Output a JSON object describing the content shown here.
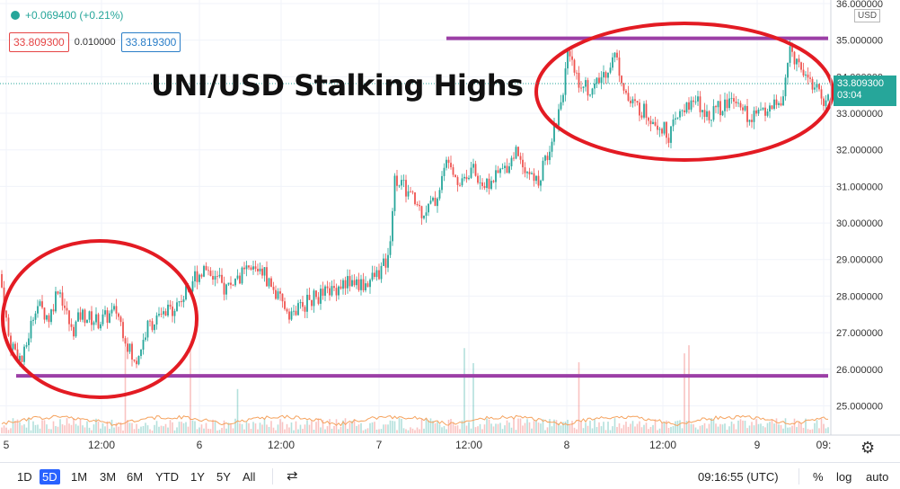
{
  "header": {
    "change": "+0.069400 (+0.21%)",
    "sell_price": "33.809300",
    "spread": "0.010000",
    "buy_price": "33.819300"
  },
  "headline": "UNI/USD Stalking Highs",
  "axis": {
    "currency": "USD",
    "last_price": "33.809300",
    "countdown": "03:04",
    "clock": "09:16:55 (UTC)"
  },
  "ranges": [
    "1D",
    "5D",
    "1M",
    "3M",
    "6M",
    "YTD",
    "1Y",
    "5Y",
    "All"
  ],
  "active_range": "5D",
  "toggles": {
    "percent": "%",
    "log": "log",
    "auto": "auto"
  },
  "colors": {
    "up": "#26a69a",
    "down": "#ef5350",
    "level": "#9c3fa6",
    "circle": "#e31b23",
    "active": "#2962ff"
  },
  "chart_data": {
    "type": "candlestick",
    "ylim": [
      24.2,
      36.0
    ],
    "y_ticks": [
      "36.000000",
      "35.000000",
      "34.000000",
      "33.000000",
      "32.000000",
      "31.000000",
      "30.000000",
      "29.000000",
      "28.000000",
      "27.000000",
      "26.000000",
      "25.000000"
    ],
    "x_ticks": [
      "5",
      "12:00",
      "6",
      "12:00",
      "7",
      "12:00",
      "8",
      "12:00",
      "9",
      "09:"
    ],
    "anchors": [
      [
        0,
        28.6
      ],
      [
        10,
        26.8
      ],
      [
        25,
        26.2
      ],
      [
        40,
        27.8
      ],
      [
        55,
        27.4
      ],
      [
        65,
        28.3
      ],
      [
        80,
        27.0
      ],
      [
        90,
        27.5
      ],
      [
        110,
        27.3
      ],
      [
        130,
        27.6
      ],
      [
        150,
        26.1
      ],
      [
        165,
        27.2
      ],
      [
        185,
        27.5
      ],
      [
        205,
        28.0
      ],
      [
        215,
        28.5
      ],
      [
        230,
        28.8
      ],
      [
        250,
        28.2
      ],
      [
        270,
        28.6
      ],
      [
        290,
        28.8
      ],
      [
        310,
        27.9
      ],
      [
        325,
        27.5
      ],
      [
        345,
        27.9
      ],
      [
        365,
        28.1
      ],
      [
        385,
        28.4
      ],
      [
        405,
        28.3
      ],
      [
        420,
        28.6
      ],
      [
        432,
        29.0
      ],
      [
        440,
        31.3
      ],
      [
        455,
        30.8
      ],
      [
        470,
        30.3
      ],
      [
        485,
        30.6
      ],
      [
        500,
        31.9
      ],
      [
        510,
        31.1
      ],
      [
        525,
        31.5
      ],
      [
        540,
        31.0
      ],
      [
        550,
        31.2
      ],
      [
        565,
        31.6
      ],
      [
        575,
        32.0
      ],
      [
        590,
        31.3
      ],
      [
        600,
        31.1
      ],
      [
        615,
        32.4
      ],
      [
        625,
        33.4
      ],
      [
        632,
        34.5
      ],
      [
        645,
        33.9
      ],
      [
        660,
        33.6
      ],
      [
        670,
        34.0
      ],
      [
        685,
        34.6
      ],
      [
        700,
        33.3
      ],
      [
        715,
        33.1
      ],
      [
        730,
        32.8
      ],
      [
        745,
        32.4
      ],
      [
        760,
        33.1
      ],
      [
        775,
        33.3
      ],
      [
        790,
        33.0
      ],
      [
        805,
        33.2
      ],
      [
        820,
        33.5
      ],
      [
        835,
        32.8
      ],
      [
        850,
        33.1
      ],
      [
        870,
        33.3
      ],
      [
        880,
        34.7
      ],
      [
        895,
        34.2
      ],
      [
        910,
        33.6
      ],
      [
        918,
        33.3
      ],
      [
        925,
        33.8
      ]
    ],
    "levels": [
      {
        "value": 35.05,
        "x_range": [
          497,
          922
        ]
      },
      {
        "value": 25.82,
        "x_range": [
          18,
          922
        ]
      }
    ]
  }
}
